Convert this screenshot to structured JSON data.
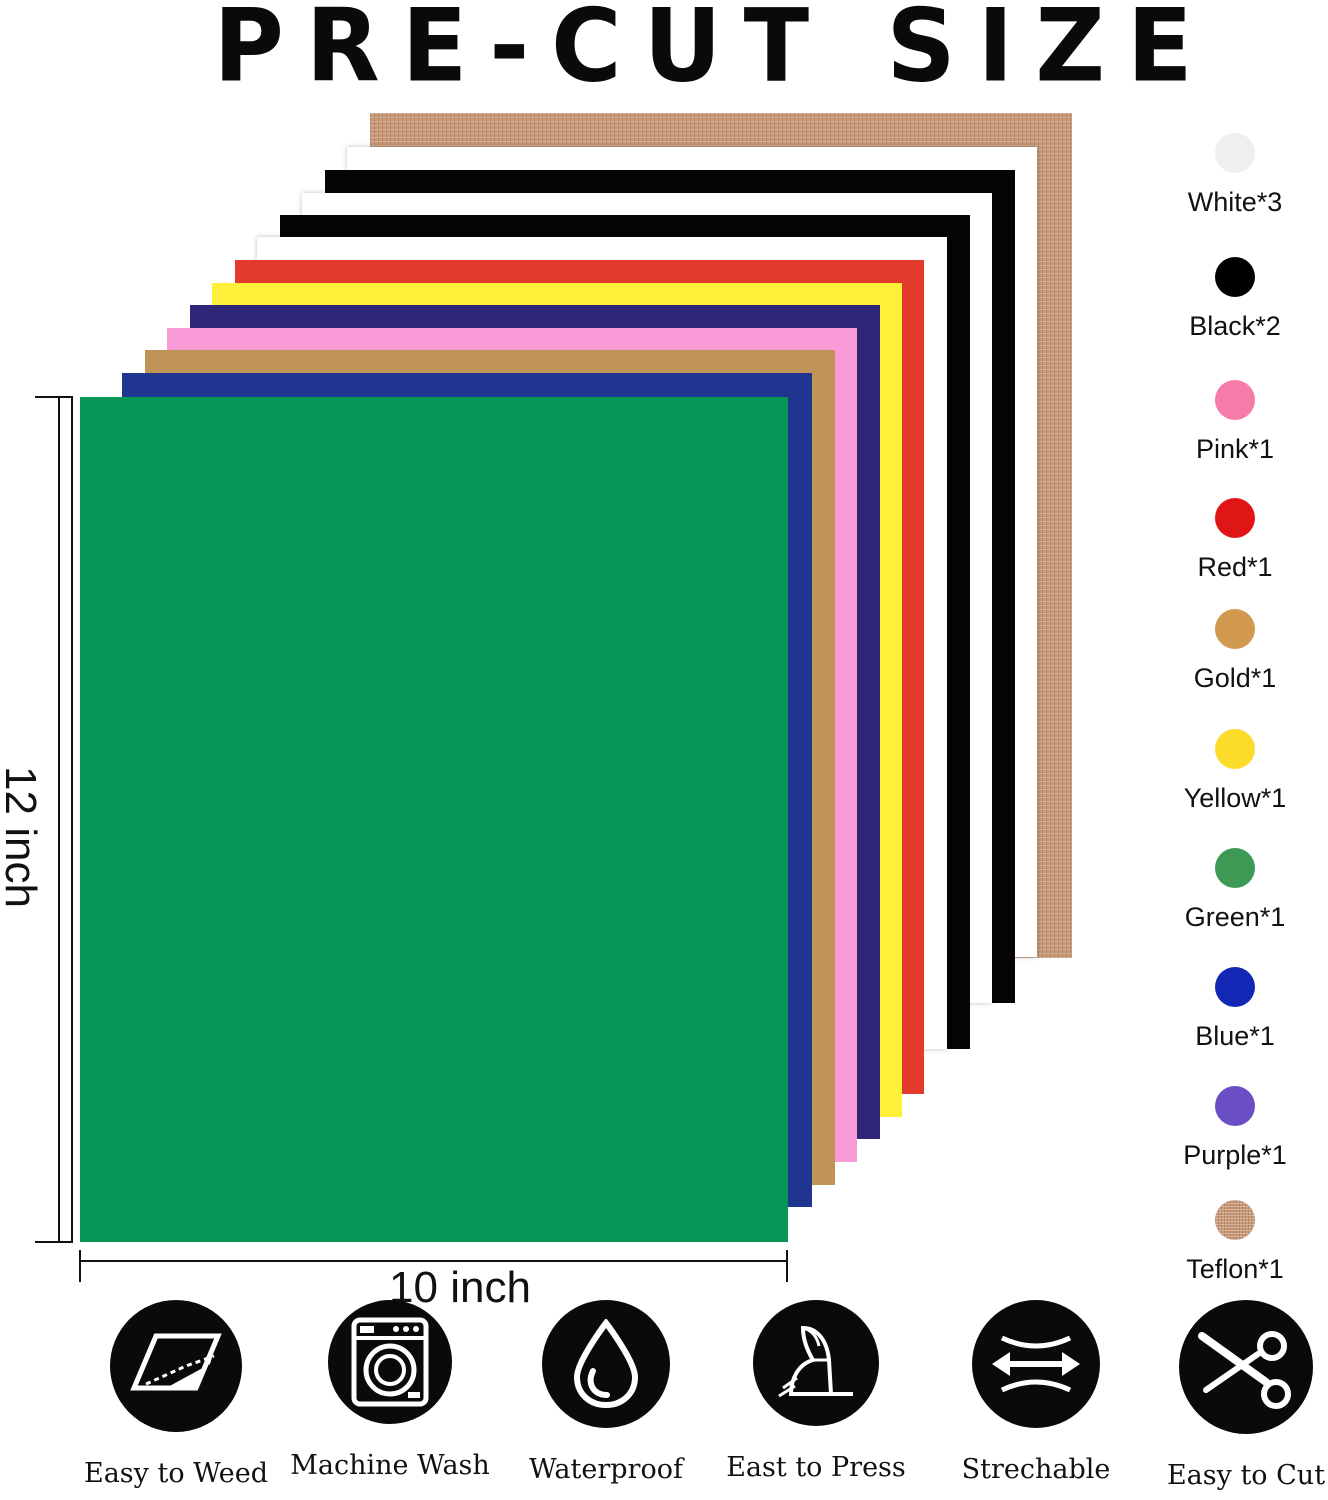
{
  "title": "PRE-CUT SIZE",
  "dimensions": {
    "height_label": "12 inch",
    "width_label": "10 inch"
  },
  "sheets": [
    {
      "name": "teflon",
      "color": "#c89a78"
    },
    {
      "name": "white",
      "color": "#ffffff"
    },
    {
      "name": "black",
      "color": "#050505"
    },
    {
      "name": "white",
      "color": "#ffffff"
    },
    {
      "name": "black",
      "color": "#050505"
    },
    {
      "name": "white",
      "color": "#ffffff"
    },
    {
      "name": "red",
      "color": "#e23b2e"
    },
    {
      "name": "yellow",
      "color": "#fff13a"
    },
    {
      "name": "purple",
      "color": "#2e2678"
    },
    {
      "name": "pink",
      "color": "#f99bd7"
    },
    {
      "name": "gold",
      "color": "#bf9456"
    },
    {
      "name": "blue",
      "color": "#1f3590"
    },
    {
      "name": "green",
      "color": "#039655"
    }
  ],
  "legend": [
    {
      "label": "White*3",
      "color": "#efefef"
    },
    {
      "label": "Black*2",
      "color": "#000000"
    },
    {
      "label": "Pink*1",
      "color": "#f57ca8"
    },
    {
      "label": "Red*1",
      "color": "#e01616"
    },
    {
      "label": "Gold*1",
      "color": "#d19a4e"
    },
    {
      "label": "Yellow*1",
      "color": "#fddb2a"
    },
    {
      "label": "Green*1",
      "color": "#3c9a55"
    },
    {
      "label": "Blue*1",
      "color": "#1228b4"
    },
    {
      "label": "Purple*1",
      "color": "#6a4fc4"
    },
    {
      "label": "Teflon*1",
      "color": "#c89a78"
    }
  ],
  "features": [
    {
      "label": "Easy to Weed",
      "icon": "weed-icon"
    },
    {
      "label": "Machine Wash",
      "icon": "washing-machine-icon"
    },
    {
      "label": "Waterproof",
      "icon": "water-drop-icon"
    },
    {
      "label": "East to Press",
      "icon": "iron-icon"
    },
    {
      "label": "Strechable",
      "icon": "stretch-arrows-icon"
    },
    {
      "label": "Easy to Cut",
      "icon": "scissors-icon"
    }
  ]
}
